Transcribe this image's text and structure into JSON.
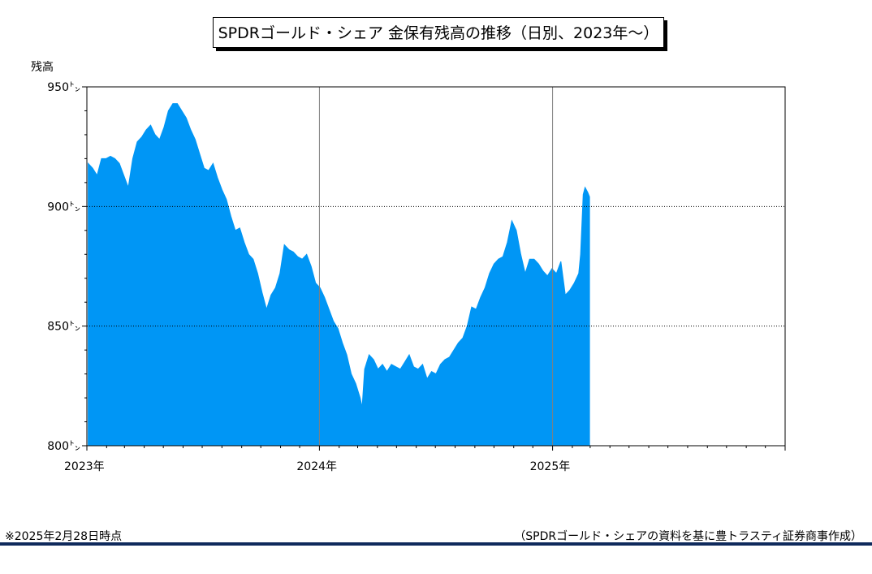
{
  "colors": {
    "fill": "#0096f5",
    "frame": "#000000",
    "grid": "#000000",
    "vgrid": "#808080",
    "rule": "#0f2a5c"
  },
  "footnote_left": "※2025年2月28日時点",
  "footnote_right": "（SPDRゴールド・シェアの資料を基に豊トラスティ証券商事作成）",
  "chart_data": {
    "type": "area",
    "title": "SPDRゴールド・シェア 金保有残高の推移（日別、2023年～）",
    "ylabel": "残高",
    "ylim": [
      800,
      950
    ],
    "xlim": [
      "2023-01-01",
      "2025-12-31"
    ],
    "y_ticks": [
      "800㌧",
      "850㌧",
      "900㌧",
      "950㌧"
    ],
    "y_tick_values": [
      800,
      850,
      900,
      950
    ],
    "x_ticks": [
      "2023年",
      "2024年",
      "2025年"
    ],
    "x_tick_dates": [
      "2023-01-01",
      "2024-01-01",
      "2025-01-01"
    ],
    "grid": {
      "horizontal": [
        850,
        900
      ],
      "vertical": [
        "2024-01-01",
        "2025-01-01"
      ]
    },
    "series": [
      {
        "values": [
          [
            "2023-01-03",
            918
          ],
          [
            "2023-01-10",
            916
          ],
          [
            "2023-01-17",
            913
          ],
          [
            "2023-01-24",
            920
          ],
          [
            "2023-01-31",
            920
          ],
          [
            "2023-02-07",
            921
          ],
          [
            "2023-02-14",
            920
          ],
          [
            "2023-02-21",
            918
          ],
          [
            "2023-02-28",
            913
          ],
          [
            "2023-03-07",
            908
          ],
          [
            "2023-03-14",
            920
          ],
          [
            "2023-03-21",
            927
          ],
          [
            "2023-03-28",
            929
          ],
          [
            "2023-04-04",
            932
          ],
          [
            "2023-04-11",
            934
          ],
          [
            "2023-04-18",
            930
          ],
          [
            "2023-04-25",
            928
          ],
          [
            "2023-05-02",
            933
          ],
          [
            "2023-05-09",
            940
          ],
          [
            "2023-05-16",
            943
          ],
          [
            "2023-05-23",
            943
          ],
          [
            "2023-05-30",
            940
          ],
          [
            "2023-06-06",
            937
          ],
          [
            "2023-06-13",
            932
          ],
          [
            "2023-06-20",
            928
          ],
          [
            "2023-06-27",
            922
          ],
          [
            "2023-07-04",
            916
          ],
          [
            "2023-07-11",
            915
          ],
          [
            "2023-07-18",
            918
          ],
          [
            "2023-07-25",
            912
          ],
          [
            "2023-08-01",
            907
          ],
          [
            "2023-08-08",
            903
          ],
          [
            "2023-08-15",
            896
          ],
          [
            "2023-08-22",
            890
          ],
          [
            "2023-08-29",
            891
          ],
          [
            "2023-09-05",
            885
          ],
          [
            "2023-09-12",
            880
          ],
          [
            "2023-09-19",
            878
          ],
          [
            "2023-09-26",
            872
          ],
          [
            "2023-10-03",
            864
          ],
          [
            "2023-10-10",
            857
          ],
          [
            "2023-10-17",
            863
          ],
          [
            "2023-10-24",
            866
          ],
          [
            "2023-10-31",
            872
          ],
          [
            "2023-11-07",
            884
          ],
          [
            "2023-11-14",
            882
          ],
          [
            "2023-11-21",
            881
          ],
          [
            "2023-11-28",
            879
          ],
          [
            "2023-12-05",
            878
          ],
          [
            "2023-12-12",
            880
          ],
          [
            "2023-12-19",
            875
          ],
          [
            "2023-12-26",
            868
          ],
          [
            "2024-01-02",
            866
          ],
          [
            "2024-01-09",
            862
          ],
          [
            "2024-01-16",
            857
          ],
          [
            "2024-01-23",
            852
          ],
          [
            "2024-01-30",
            849
          ],
          [
            "2024-02-06",
            843
          ],
          [
            "2024-02-13",
            838
          ],
          [
            "2024-02-20",
            830
          ],
          [
            "2024-02-27",
            826
          ],
          [
            "2024-03-05",
            820
          ],
          [
            "2024-03-08",
            816
          ],
          [
            "2024-03-12",
            832
          ],
          [
            "2024-03-19",
            838
          ],
          [
            "2024-03-26",
            836
          ],
          [
            "2024-04-02",
            832
          ],
          [
            "2024-04-09",
            834
          ],
          [
            "2024-04-16",
            831
          ],
          [
            "2024-04-23",
            834
          ],
          [
            "2024-04-30",
            833
          ],
          [
            "2024-05-07",
            832
          ],
          [
            "2024-05-14",
            835
          ],
          [
            "2024-05-21",
            838
          ],
          [
            "2024-05-28",
            833
          ],
          [
            "2024-06-04",
            832
          ],
          [
            "2024-06-11",
            834
          ],
          [
            "2024-06-18",
            828
          ],
          [
            "2024-06-25",
            831
          ],
          [
            "2024-07-02",
            830
          ],
          [
            "2024-07-09",
            834
          ],
          [
            "2024-07-16",
            836
          ],
          [
            "2024-07-23",
            837
          ],
          [
            "2024-07-30",
            840
          ],
          [
            "2024-08-06",
            843
          ],
          [
            "2024-08-13",
            845
          ],
          [
            "2024-08-20",
            850
          ],
          [
            "2024-08-27",
            858
          ],
          [
            "2024-09-03",
            857
          ],
          [
            "2024-09-10",
            862
          ],
          [
            "2024-09-17",
            866
          ],
          [
            "2024-09-24",
            872
          ],
          [
            "2024-10-01",
            876
          ],
          [
            "2024-10-08",
            878
          ],
          [
            "2024-10-15",
            879
          ],
          [
            "2024-10-22",
            885
          ],
          [
            "2024-10-29",
            894
          ],
          [
            "2024-11-05",
            890
          ],
          [
            "2024-11-12",
            880
          ],
          [
            "2024-11-19",
            872
          ],
          [
            "2024-11-26",
            878
          ],
          [
            "2024-12-03",
            878
          ],
          [
            "2024-12-10",
            876
          ],
          [
            "2024-12-17",
            873
          ],
          [
            "2024-12-24",
            871
          ],
          [
            "2024-12-31",
            874
          ],
          [
            "2025-01-07",
            872
          ],
          [
            "2025-01-14",
            877
          ],
          [
            "2025-01-21",
            863
          ],
          [
            "2025-01-28",
            865
          ],
          [
            "2025-02-04",
            868
          ],
          [
            "2025-02-11",
            872
          ],
          [
            "2025-02-14",
            880
          ],
          [
            "2025-02-18",
            905
          ],
          [
            "2025-02-21",
            908
          ],
          [
            "2025-02-25",
            906
          ],
          [
            "2025-02-28",
            904
          ]
        ]
      }
    ]
  }
}
